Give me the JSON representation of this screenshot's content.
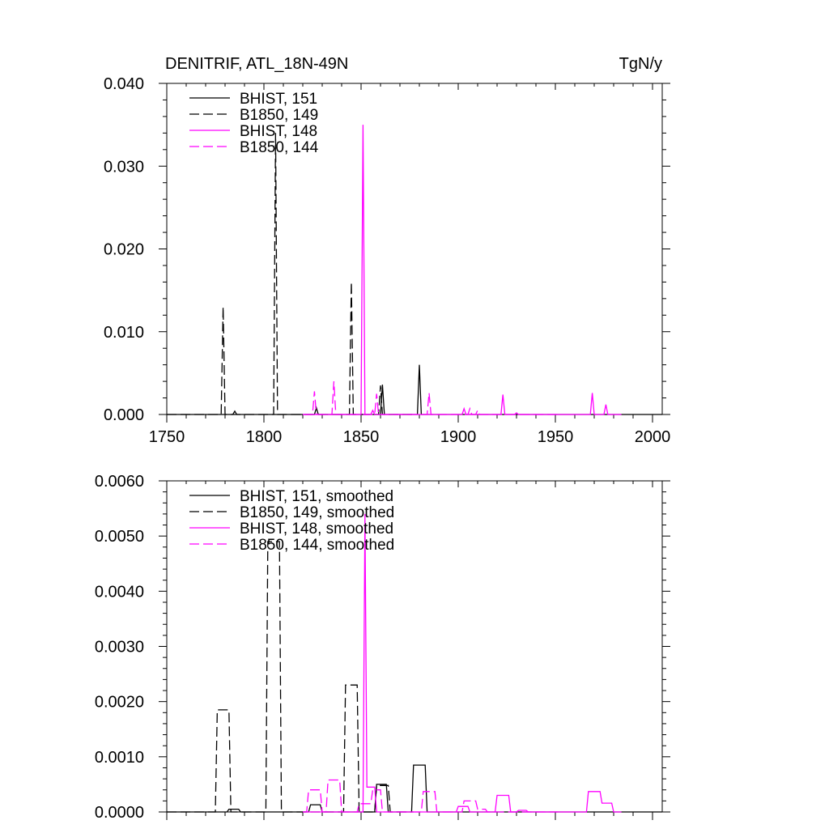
{
  "chart_data": [
    {
      "type": "line",
      "title_left": "DENITRIF, ATL_18N-49N",
      "title_right": "TgN/y",
      "xlabel": "",
      "ylabel": "",
      "xlim": [
        1750,
        2005
      ],
      "ylim": [
        0,
        0.04
      ],
      "x_ticks": [
        1750,
        1800,
        1850,
        1900,
        1950,
        2000
      ],
      "x_tick_labels": [
        "1750",
        "1800",
        "1850",
        "1900",
        "1950",
        "2000"
      ],
      "y_ticks": [
        0,
        0.01,
        0.02,
        0.03,
        0.04
      ],
      "y_tick_labels": [
        "0.000",
        "0.010",
        "0.020",
        "0.030",
        "0.040"
      ],
      "legend_position": "top-left",
      "series": [
        {
          "name": "BHIST, 151",
          "color": "#000000",
          "dash": "solid",
          "points": [
            [
              1750,
              0
            ],
            [
              1784,
              0
            ],
            [
              1785,
              0.0004
            ],
            [
              1786,
              0
            ],
            [
              1826,
              0
            ],
            [
              1827,
              0.0008
            ],
            [
              1828,
              0
            ],
            [
              1860,
              0
            ],
            [
              1861,
              0.0036
            ],
            [
              1862,
              0
            ],
            [
              1879,
              0
            ],
            [
              1880,
              0.006
            ],
            [
              1881,
              0
            ],
            [
              2005,
              0
            ]
          ]
        },
        {
          "name": "B1850, 149",
          "color": "#000000",
          "dash": "dashed",
          "points": [
            [
              1750,
              0
            ],
            [
              1778,
              0
            ],
            [
              1779,
              0.013
            ],
            [
              1780,
              0
            ],
            [
              1805,
              0
            ],
            [
              1806,
              0.034
            ],
            [
              1807,
              0
            ],
            [
              1844,
              0
            ],
            [
              1845,
              0.016
            ],
            [
              1846,
              0
            ],
            [
              1859,
              0
            ],
            [
              1860,
              0.0035
            ],
            [
              1861,
              0
            ],
            [
              1877,
              0
            ]
          ]
        },
        {
          "name": "BHIST, 148",
          "color": "#ff00ff",
          "dash": "solid",
          "points": [
            [
              1820,
              0
            ],
            [
              1850,
              0
            ],
            [
              1851,
              0.035
            ],
            [
              1852,
              0
            ],
            [
              1855,
              0
            ],
            [
              1856,
              0.0005
            ],
            [
              1857,
              0
            ],
            [
              1902,
              0
            ],
            [
              1903,
              0.0007
            ],
            [
              1904,
              0
            ],
            [
              1922,
              0
            ],
            [
              1923,
              0.0024
            ],
            [
              1924,
              0
            ],
            [
              1929,
              0
            ],
            [
              1930,
              0.0002
            ],
            [
              1931,
              0
            ],
            [
              1968,
              0
            ],
            [
              1969,
              0.0026
            ],
            [
              1970,
              0
            ],
            [
              1975,
              0
            ],
            [
              1976,
              0.0012
            ],
            [
              1977,
              0
            ],
            [
              1984,
              0
            ]
          ]
        },
        {
          "name": "B1850, 144",
          "color": "#ff00ff",
          "dash": "dashed",
          "points": [
            [
              1820,
              0
            ],
            [
              1825,
              0
            ],
            [
              1826,
              0.0028
            ],
            [
              1827,
              0
            ],
            [
              1835,
              0
            ],
            [
              1836,
              0.004
            ],
            [
              1837,
              0
            ],
            [
              1857,
              0
            ],
            [
              1858,
              0.0025
            ],
            [
              1859,
              0
            ],
            [
              1884,
              0
            ],
            [
              1885,
              0.0026
            ],
            [
              1886,
              0
            ],
            [
              1905,
              0
            ],
            [
              1906,
              0.0007
            ],
            [
              1907,
              0
            ],
            [
              1909,
              0
            ],
            [
              1910,
              0.0005
            ],
            [
              1911,
              0
            ],
            [
              1951,
              0
            ]
          ]
        }
      ]
    },
    {
      "type": "line",
      "title_left": "",
      "title_right": "",
      "xlabel": "",
      "ylabel": "",
      "xlim": [
        1750,
        2005
      ],
      "ylim": [
        0,
        0.006
      ],
      "x_ticks": [
        1750,
        1800,
        1850,
        1900,
        1950,
        2000
      ],
      "x_tick_labels": [],
      "y_ticks": [
        0,
        0.001,
        0.002,
        0.003,
        0.004,
        0.005,
        0.006
      ],
      "y_tick_labels": [
        "0.0000",
        "0.0010",
        "0.0020",
        "0.0030",
        "0.0040",
        "0.0050",
        "0.0060"
      ],
      "legend_position": "top-left",
      "series": [
        {
          "name": "BHIST, 151, smoothed",
          "color": "#000000",
          "dash": "solid",
          "points": [
            [
              1750,
              0
            ],
            [
              1775,
              0
            ],
            [
              1776,
              0
            ],
            [
              1781,
              0
            ],
            [
              1782,
              5e-05
            ],
            [
              1787,
              5e-05
            ],
            [
              1788,
              0
            ],
            [
              1823,
              0
            ],
            [
              1824,
              0.00013
            ],
            [
              1829,
              0.00013
            ],
            [
              1830,
              0
            ],
            [
              1857,
              0
            ],
            [
              1858,
              0.0005
            ],
            [
              1863,
              0.0005
            ],
            [
              1864,
              0
            ],
            [
              1876,
              0
            ],
            [
              1877,
              0.00085
            ],
            [
              1883,
              0.00085
            ],
            [
              1884,
              0
            ],
            [
              2005,
              0
            ]
          ]
        },
        {
          "name": "B1850, 149, smoothed",
          "color": "#000000",
          "dash": "dashed",
          "points": [
            [
              1750,
              0
            ],
            [
              1775,
              0
            ],
            [
              1776,
              0.00185
            ],
            [
              1782,
              0.00185
            ],
            [
              1783,
              0
            ],
            [
              1801,
              0
            ],
            [
              1802,
              0.0049
            ],
            [
              1808,
              0.0049
            ],
            [
              1809,
              0
            ],
            [
              1841,
              0
            ],
            [
              1842,
              0.0023
            ],
            [
              1848,
              0.0023
            ],
            [
              1849,
              0
            ],
            [
              1857,
              0
            ],
            [
              1858,
              0.00048
            ],
            [
              1864,
              0.00048
            ],
            [
              1865,
              0
            ],
            [
              1877,
              0
            ]
          ]
        },
        {
          "name": "BHIST, 148, smoothed",
          "color": "#ff00ff",
          "dash": "solid",
          "points": [
            [
              1820,
              0
            ],
            [
              1849,
              0
            ],
            [
              1850,
              0
            ],
            [
              1851,
              0
            ],
            [
              1852,
              0.0054
            ],
            [
              1853,
              0.00045
            ],
            [
              1855,
              0.00045
            ],
            [
              1857,
              0.00045
            ],
            [
              1858,
              0
            ],
            [
              1899,
              0
            ],
            [
              1900,
              0.0001
            ],
            [
              1905,
              0.0001
            ],
            [
              1906,
              0
            ],
            [
              1919,
              0
            ],
            [
              1920,
              0.0003
            ],
            [
              1926,
              0.0003
            ],
            [
              1927,
              0
            ],
            [
              1930,
              0
            ],
            [
              1931,
              3e-05
            ],
            [
              1935,
              3e-05
            ],
            [
              1936,
              0
            ],
            [
              1966,
              0
            ],
            [
              1967,
              0.00037
            ],
            [
              1973,
              0.00037
            ],
            [
              1974,
              0.00016
            ],
            [
              1979,
              0.00016
            ],
            [
              1980,
              0
            ],
            [
              1984,
              0
            ]
          ]
        },
        {
          "name": "B1850, 144, smoothed",
          "color": "#ff00ff",
          "dash": "dashed",
          "points": [
            [
              1820,
              0
            ],
            [
              1822,
              0
            ],
            [
              1823,
              0.0004
            ],
            [
              1829,
              0.0004
            ],
            [
              1830,
              0
            ],
            [
              1832,
              0
            ],
            [
              1833,
              0.00058
            ],
            [
              1839,
              0.00058
            ],
            [
              1840,
              0
            ],
            [
              1848,
              0
            ],
            [
              1849,
              0.00015
            ],
            [
              1855,
              0.00015
            ],
            [
              1856,
              0.0004
            ],
            [
              1860,
              0.0004
            ],
            [
              1861,
              0
            ],
            [
              1881,
              0
            ],
            [
              1882,
              0.00037
            ],
            [
              1888,
              0.00037
            ],
            [
              1889,
              0
            ],
            [
              1902,
              0
            ],
            [
              1903,
              0.0002
            ],
            [
              1909,
              0.0002
            ],
            [
              1910,
              5e-05
            ],
            [
              1914,
              5e-05
            ],
            [
              1915,
              0
            ],
            [
              1951,
              0
            ]
          ]
        }
      ]
    }
  ]
}
